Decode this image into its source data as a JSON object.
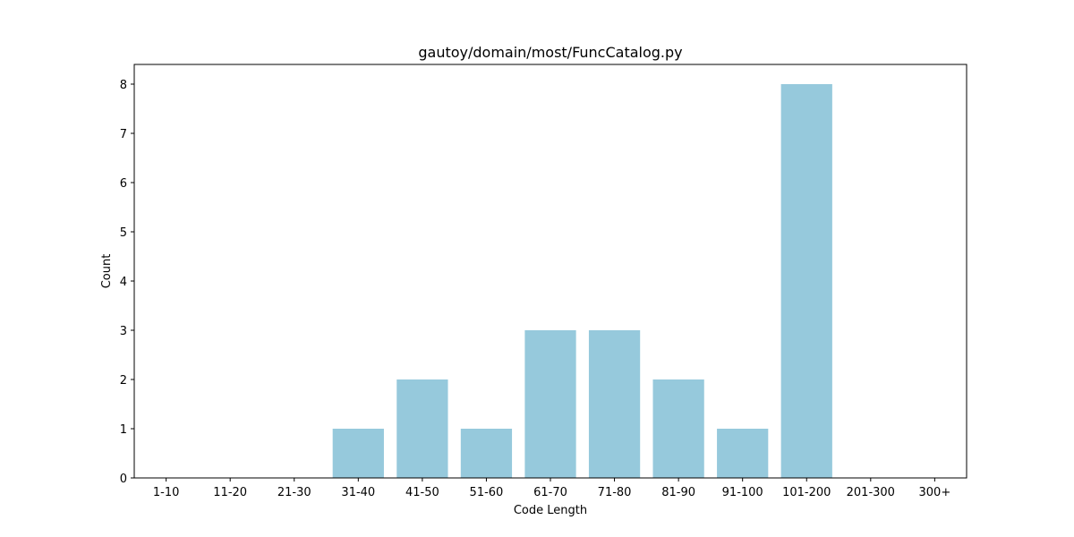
{
  "chart_data": {
    "type": "bar",
    "title": "gautoy/domain/most/FuncCatalog.py",
    "xlabel": "Code Length",
    "ylabel": "Count",
    "categories": [
      "1-10",
      "11-20",
      "21-30",
      "31-40",
      "41-50",
      "51-60",
      "61-70",
      "71-80",
      "81-90",
      "91-100",
      "101-200",
      "201-300",
      "300+"
    ],
    "values": [
      0,
      0,
      0,
      1,
      2,
      1,
      3,
      3,
      2,
      1,
      8,
      0,
      0
    ],
    "ylim": [
      0,
      8.4
    ],
    "yticks": [
      0,
      1,
      2,
      3,
      4,
      5,
      6,
      7,
      8
    ],
    "grid": false,
    "legend": "none",
    "bar_color": "#96c9dc"
  }
}
